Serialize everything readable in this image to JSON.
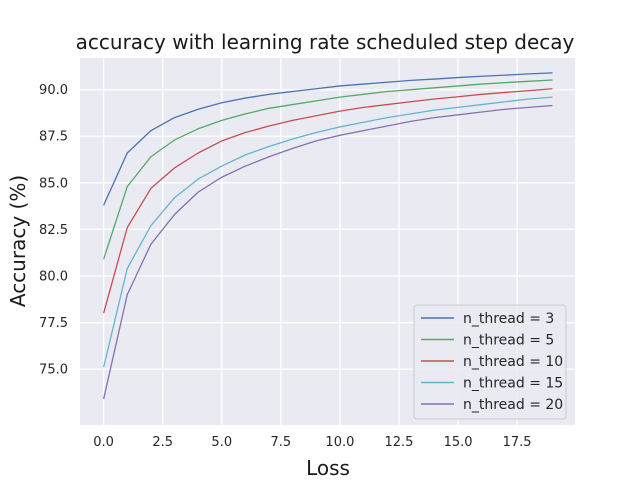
{
  "chart_data": {
    "type": "line",
    "title": "accuracy with learning rate scheduled step decay",
    "xlabel": "Loss",
    "ylabel": "Accuracy (%)",
    "xlim": [
      -1.0,
      19.95
    ],
    "ylim": [
      72.0,
      91.7
    ],
    "xticks": [
      "0.0",
      "2.5",
      "5.0",
      "7.5",
      "10.0",
      "12.5",
      "15.0",
      "17.5"
    ],
    "yticks": [
      "75.0",
      "77.5",
      "80.0",
      "82.5",
      "85.0",
      "87.5",
      "90.0"
    ],
    "grid": true,
    "legend_position": "lower-right",
    "x": [
      0,
      1,
      2,
      3,
      4,
      5,
      6,
      7,
      8,
      9,
      10,
      11,
      12,
      13,
      14,
      15,
      16,
      17,
      18,
      19
    ],
    "series": [
      {
        "name": "n_thread = 3",
        "color": "#4c72b0",
        "values": [
          83.8,
          86.6,
          87.8,
          88.5,
          88.95,
          89.3,
          89.55,
          89.75,
          89.9,
          90.05,
          90.2,
          90.3,
          90.4,
          90.5,
          90.57,
          90.65,
          90.72,
          90.78,
          90.85,
          90.9
        ]
      },
      {
        "name": "n_thread = 5",
        "color": "#55a868",
        "values": [
          80.9,
          84.8,
          86.4,
          87.3,
          87.9,
          88.35,
          88.7,
          89.0,
          89.2,
          89.4,
          89.6,
          89.75,
          89.9,
          90.0,
          90.1,
          90.2,
          90.3,
          90.38,
          90.45,
          90.52
        ]
      },
      {
        "name": "n_thread = 10",
        "color": "#c44e52",
        "values": [
          78.0,
          82.6,
          84.7,
          85.8,
          86.6,
          87.25,
          87.7,
          88.05,
          88.35,
          88.6,
          88.85,
          89.05,
          89.2,
          89.35,
          89.5,
          89.62,
          89.75,
          89.85,
          89.95,
          90.05
        ]
      },
      {
        "name": "n_thread = 15",
        "color": "#64b5cd",
        "values": [
          75.1,
          80.4,
          82.7,
          84.2,
          85.2,
          85.9,
          86.5,
          86.95,
          87.35,
          87.7,
          88.0,
          88.25,
          88.5,
          88.7,
          88.9,
          89.05,
          89.2,
          89.35,
          89.5,
          89.6
        ]
      },
      {
        "name": "n_thread = 20",
        "color": "#8172b3",
        "values": [
          73.4,
          79.0,
          81.7,
          83.3,
          84.5,
          85.3,
          85.9,
          86.4,
          86.85,
          87.25,
          87.55,
          87.8,
          88.05,
          88.3,
          88.5,
          88.65,
          88.8,
          88.95,
          89.05,
          89.15
        ]
      }
    ]
  }
}
